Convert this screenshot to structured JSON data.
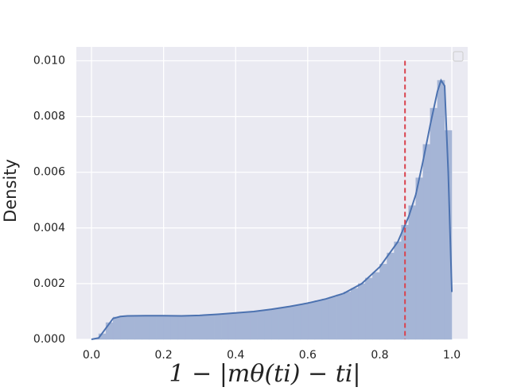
{
  "chart_data": {
    "type": "histogram",
    "xlabel": "1 − |mθ(ti) − ti|",
    "ylabel": "Density",
    "bins": [
      0,
      0.02,
      0.04,
      0.06,
      0.08,
      0.1,
      0.12,
      0.14,
      0.16,
      0.18,
      0.2,
      0.22,
      0.24,
      0.26,
      0.28,
      0.3,
      0.32,
      0.34,
      0.36,
      0.38,
      0.4,
      0.42,
      0.44,
      0.46,
      0.48,
      0.5,
      0.52,
      0.54,
      0.56,
      0.58,
      0.6,
      0.62,
      0.64,
      0.66,
      0.68,
      0.7,
      0.72,
      0.74,
      0.76,
      0.78,
      0.8,
      0.82,
      0.84,
      0.86,
      0.88,
      0.9,
      0.92,
      0.94,
      0.96,
      0.98,
      1.0
    ],
    "values": [
      2e-05,
      0.0002,
      0.0006,
      0.0008,
      0.00083,
      0.00084,
      0.00085,
      0.00085,
      0.00085,
      0.00085,
      0.00085,
      0.00084,
      0.00084,
      0.00085,
      0.00086,
      0.00087,
      0.00088,
      0.0009,
      0.00092,
      0.00094,
      0.00096,
      0.00098,
      0.001,
      0.00103,
      0.00106,
      0.0011,
      0.00114,
      0.00118,
      0.00122,
      0.00127,
      0.00133,
      0.00139,
      0.00145,
      0.00152,
      0.0016,
      0.0017,
      0.00183,
      0.002,
      0.0022,
      0.0024,
      0.0027,
      0.0031,
      0.0035,
      0.0041,
      0.0048,
      0.0058,
      0.007,
      0.0083,
      0.0093,
      0.0075
    ],
    "color": "#a5b5d6",
    "kde": {
      "color": "#4c72b0",
      "x": [
        0.0,
        0.02,
        0.04,
        0.06,
        0.08,
        0.1,
        0.15,
        0.2,
        0.25,
        0.3,
        0.35,
        0.4,
        0.45,
        0.5,
        0.55,
        0.6,
        0.65,
        0.7,
        0.75,
        0.8,
        0.85,
        0.88,
        0.9,
        0.92,
        0.94,
        0.96,
        0.97,
        0.98,
        0.99,
        1.0
      ],
      "values": [
        0,
        5e-05,
        0.0004,
        0.00075,
        0.00082,
        0.00084,
        0.00085,
        0.00085,
        0.00084,
        0.00086,
        0.0009,
        0.00095,
        0.001,
        0.00108,
        0.00118,
        0.0013,
        0.00145,
        0.00165,
        0.002,
        0.0026,
        0.0035,
        0.0044,
        0.0052,
        0.0064,
        0.0077,
        0.0089,
        0.0093,
        0.0091,
        0.006,
        0.0017
      ]
    },
    "vline": {
      "x": 0.87,
      "color": "#d9434e"
    },
    "xlim": [
      -0.042,
      1.044
    ],
    "ylim": [
      0,
      0.0105
    ],
    "xticks": [
      {
        "value": 0,
        "label": "0.0"
      },
      0.2,
      0.4,
      0.6,
      0.8,
      {
        "value": 1,
        "label": "1.0"
      }
    ],
    "yticks": [
      {
        "value": 0,
        "label": "0.000"
      },
      {
        "value": 0.002,
        "label": "0.002"
      },
      {
        "value": 0.004,
        "label": "0.004"
      },
      {
        "value": 0.006,
        "label": "0.006"
      },
      {
        "value": 0.008,
        "label": "0.008"
      },
      {
        "value": 0.01,
        "label": "0.010"
      }
    ],
    "grid": true
  }
}
